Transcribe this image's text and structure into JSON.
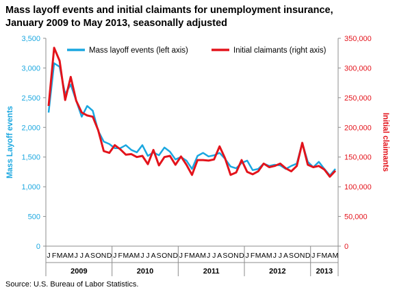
{
  "title_line1": "Mass layoff events and initial claimants for unemployment insurance,",
  "title_line2": "January 2009 to May 2013, seasonally adjusted",
  "source": "Source: U.S. Bureau of Labor Statistics.",
  "chart_data": {
    "type": "line",
    "ylabel_left": "Mass Layoff events",
    "ylabel_right": "Initial claimants",
    "left_axis": {
      "min": 0,
      "max": 3500,
      "step": 500,
      "ticks": [
        "0",
        "500",
        "1,000",
        "1,500",
        "2,000",
        "2,500",
        "3,000",
        "3,500"
      ]
    },
    "right_axis": {
      "min": 0,
      "max": 350000,
      "step": 50000,
      "ticks": [
        "0",
        "50,000",
        "100,000",
        "150,000",
        "200,000",
        "250,000",
        "300,000",
        "350,000"
      ]
    },
    "month_labels": [
      "J",
      "F",
      "M",
      "A",
      "M",
      "J",
      "J",
      "A",
      "S",
      "O",
      "N",
      "D",
      "J",
      "F",
      "M",
      "A",
      "M",
      "J",
      "J",
      "A",
      "S",
      "O",
      "N",
      "D",
      "J",
      "F",
      "M",
      "A",
      "M",
      "J",
      "J",
      "A",
      "S",
      "O",
      "N",
      "D",
      "J",
      "F",
      "M",
      "A",
      "M",
      "J",
      "J",
      "A",
      "S",
      "O",
      "N",
      "D",
      "J",
      "F",
      "M",
      "A",
      "M"
    ],
    "year_labels": [
      "2009",
      "2010",
      "2011",
      "2012",
      "2013"
    ],
    "legend_position": "top",
    "series": [
      {
        "name": "Mass layoff events (left axis)",
        "axis": "left",
        "color": "#1aa7e0",
        "values": [
          2250,
          3080,
          3020,
          2560,
          2720,
          2450,
          2180,
          2360,
          2280,
          1940,
          1760,
          1720,
          1650,
          1650,
          1700,
          1620,
          1580,
          1700,
          1520,
          1580,
          1530,
          1660,
          1590,
          1460,
          1500,
          1440,
          1300,
          1520,
          1570,
          1510,
          1530,
          1570,
          1470,
          1340,
          1310,
          1400,
          1440,
          1280,
          1300,
          1390,
          1350,
          1370,
          1360,
          1300,
          1350,
          1390,
          1740,
          1420,
          1330,
          1420,
          1300,
          1190,
          1300
        ]
      },
      {
        "name": "Initial claimants (right axis)",
        "axis": "right",
        "color": "#e3131b",
        "values": [
          236000,
          334000,
          312000,
          246000,
          285000,
          245000,
          225000,
          220000,
          218000,
          195000,
          160000,
          157000,
          170000,
          163000,
          154000,
          155000,
          150000,
          152000,
          138000,
          162000,
          136000,
          150000,
          152000,
          137000,
          151000,
          137000,
          120000,
          145000,
          145000,
          144000,
          146000,
          168000,
          148000,
          120000,
          124000,
          145000,
          125000,
          121000,
          126000,
          139000,
          133000,
          135000,
          139000,
          131000,
          126000,
          135000,
          174000,
          137000,
          133000,
          135000,
          129000,
          117000,
          127000
        ]
      }
    ]
  }
}
